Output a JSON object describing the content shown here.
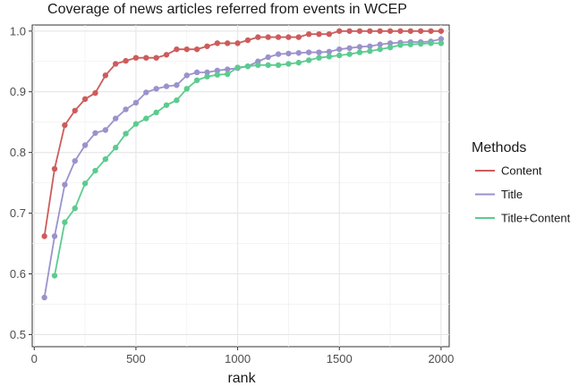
{
  "chart_data": {
    "type": "line",
    "title": "Coverage of news articles referred from events in WCEP",
    "xlabel": "rank",
    "ylabel": "",
    "xlim": [
      -10,
      2040
    ],
    "ylim": [
      0.48,
      1.01
    ],
    "x_ticks": [
      0,
      500,
      1000,
      1500,
      2000
    ],
    "y_ticks": [
      0.5,
      0.6,
      0.7,
      0.8,
      0.9,
      1.0
    ],
    "x_tick_labels": [
      "0",
      "500",
      "1000",
      "1500",
      "2000"
    ],
    "y_tick_labels": [
      "0.5",
      "0.6",
      "0.7",
      "0.8",
      "0.9",
      "1.0"
    ],
    "grid": true,
    "legend": {
      "title": "Methods",
      "position": "right"
    },
    "series": [
      {
        "name": "Content",
        "color": "#CD5C5C",
        "x": [
          50,
          100,
          150,
          200,
          250,
          300,
          350,
          400,
          450,
          500,
          550,
          600,
          650,
          700,
          750,
          800,
          850,
          900,
          950,
          1000,
          1050,
          1100,
          1150,
          1200,
          1250,
          1300,
          1350,
          1400,
          1450,
          1500,
          1550,
          1600,
          1650,
          1700,
          1750,
          1800,
          1850,
          1900,
          1950,
          2000
        ],
        "y": [
          0.662,
          0.773,
          0.845,
          0.869,
          0.888,
          0.898,
          0.927,
          0.946,
          0.951,
          0.956,
          0.956,
          0.956,
          0.961,
          0.97,
          0.97,
          0.97,
          0.975,
          0.98,
          0.98,
          0.98,
          0.985,
          0.99,
          0.99,
          0.99,
          0.99,
          0.99,
          0.995,
          0.995,
          0.995,
          1.0,
          1.0,
          1.0,
          1.0,
          1.0,
          1.0,
          1.0,
          1.0,
          1.0,
          1.0,
          1.0
        ]
      },
      {
        "name": "Title",
        "color": "#9B92CC",
        "x": [
          50,
          100,
          150,
          200,
          250,
          300,
          350,
          400,
          450,
          500,
          550,
          600,
          650,
          700,
          750,
          800,
          850,
          900,
          950,
          1000,
          1050,
          1100,
          1150,
          1200,
          1250,
          1300,
          1350,
          1400,
          1450,
          1500,
          1550,
          1600,
          1650,
          1700,
          1750,
          1800,
          1850,
          1900,
          1950,
          2000
        ],
        "y": [
          0.561,
          0.662,
          0.747,
          0.786,
          0.812,
          0.832,
          0.837,
          0.856,
          0.871,
          0.882,
          0.899,
          0.905,
          0.909,
          0.911,
          0.927,
          0.932,
          0.932,
          0.935,
          0.937,
          0.939,
          0.942,
          0.95,
          0.957,
          0.962,
          0.963,
          0.964,
          0.965,
          0.965,
          0.966,
          0.97,
          0.972,
          0.974,
          0.975,
          0.978,
          0.98,
          0.981,
          0.982,
          0.982,
          0.983,
          0.987
        ]
      },
      {
        "name": "Title+Content",
        "color": "#5CCB8F",
        "x": [
          100,
          150,
          200,
          250,
          300,
          350,
          400,
          450,
          500,
          550,
          600,
          650,
          700,
          750,
          800,
          850,
          900,
          950,
          1000,
          1050,
          1100,
          1150,
          1200,
          1250,
          1300,
          1350,
          1400,
          1450,
          1500,
          1550,
          1600,
          1650,
          1700,
          1750,
          1800,
          1850,
          1900,
          1950,
          2000
        ],
        "y": [
          0.597,
          0.685,
          0.708,
          0.749,
          0.77,
          0.789,
          0.808,
          0.831,
          0.847,
          0.856,
          0.866,
          0.878,
          0.886,
          0.905,
          0.919,
          0.925,
          0.928,
          0.929,
          0.94,
          0.942,
          0.944,
          0.944,
          0.944,
          0.946,
          0.948,
          0.952,
          0.956,
          0.958,
          0.96,
          0.962,
          0.965,
          0.967,
          0.97,
          0.973,
          0.977,
          0.978,
          0.979,
          0.98,
          0.98
        ]
      }
    ]
  }
}
